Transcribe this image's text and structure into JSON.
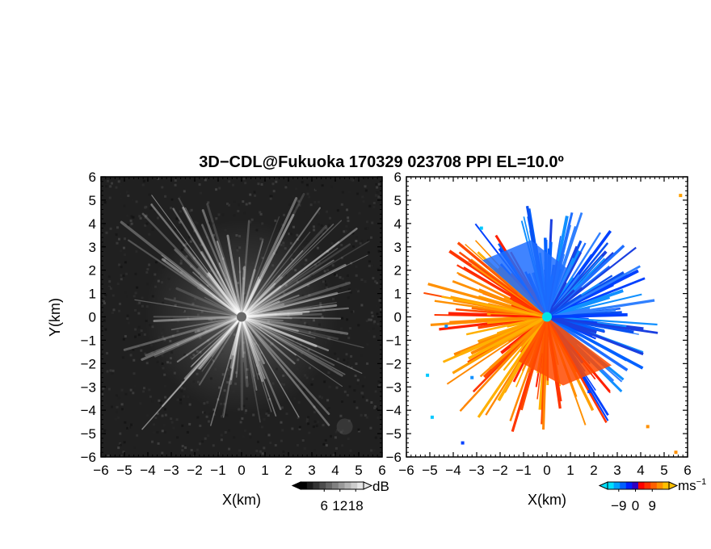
{
  "figure": {
    "title": "3D−CDL@Fukuoka 170329 023708 PPI EL=10.0º"
  },
  "chart_data": [
    {
      "type": "heatmap",
      "panel": "left",
      "title": "",
      "xlabel": "X(km)",
      "ylabel": "Y(km)",
      "xlim": [
        -6,
        6
      ],
      "ylim": [
        -6,
        6
      ],
      "x_ticks": [
        -6,
        -5,
        -4,
        -3,
        -2,
        -1,
        0,
        1,
        2,
        3,
        4,
        5,
        6
      ],
      "y_ticks": [
        -6,
        -5,
        -4,
        -3,
        -2,
        -1,
        0,
        1,
        2,
        3,
        4,
        5,
        6
      ],
      "x_tick_labels": [
        "−6",
        "−5",
        "−4",
        "−3",
        "−2",
        "−1",
        "0",
        "1",
        "2",
        "3",
        "4",
        "5",
        "6"
      ],
      "y_tick_labels": [
        "−6",
        "−5",
        "−4",
        "−3",
        "−2",
        "−1",
        "0",
        "1",
        "2",
        "3",
        "4",
        "5",
        "6"
      ],
      "colorbar": {
        "unit": "dB",
        "ticks": [
          6,
          12,
          18
        ],
        "tick_labels": [
          "6",
          "12",
          "18"
        ],
        "colors": [
          "#000000",
          "#1a1a1a",
          "#333333",
          "#4d4d4d",
          "#666666",
          "#808080",
          "#999999",
          "#b3b3b3",
          "#cccccc",
          "#e6e6e6"
        ]
      },
      "colors": {
        "background": "#202020",
        "radar_center": "#6a6a6a"
      }
    },
    {
      "type": "heatmap",
      "panel": "right",
      "title": "",
      "xlabel": "X(km)",
      "ylabel": "",
      "xlim": [
        -6,
        6
      ],
      "ylim": [
        -6,
        6
      ],
      "x_ticks": [
        -6,
        -5,
        -4,
        -3,
        -2,
        -1,
        0,
        1,
        2,
        3,
        4,
        5,
        6
      ],
      "y_ticks": [
        -6,
        -5,
        -4,
        -3,
        -2,
        -1,
        0,
        1,
        2,
        3,
        4,
        5,
        6
      ],
      "x_tick_labels": [
        "−6",
        "−5",
        "−4",
        "−3",
        "−2",
        "−1",
        "0",
        "1",
        "2",
        "3",
        "4",
        "5",
        "6"
      ],
      "y_tick_labels": [
        "−6",
        "−5",
        "−4",
        "−3",
        "−2",
        "−1",
        "0",
        "1",
        "2",
        "3",
        "4",
        "5",
        "6"
      ],
      "colorbar": {
        "unit": "ms",
        "unit_exponent": "−1",
        "ticks": [
          -9,
          0,
          9
        ],
        "tick_labels": [
          "−9",
          "0",
          "9"
        ],
        "colors": [
          "#00e0ff",
          "#00a0ff",
          "#0060ff",
          "#0020ff",
          "#3000c0",
          "#ff0000",
          "#ff3000",
          "#ff6000",
          "#ff9000",
          "#ffc000"
        ]
      },
      "colors": {
        "background": "#ffffff",
        "radar_center": "#00e5e5"
      }
    }
  ]
}
